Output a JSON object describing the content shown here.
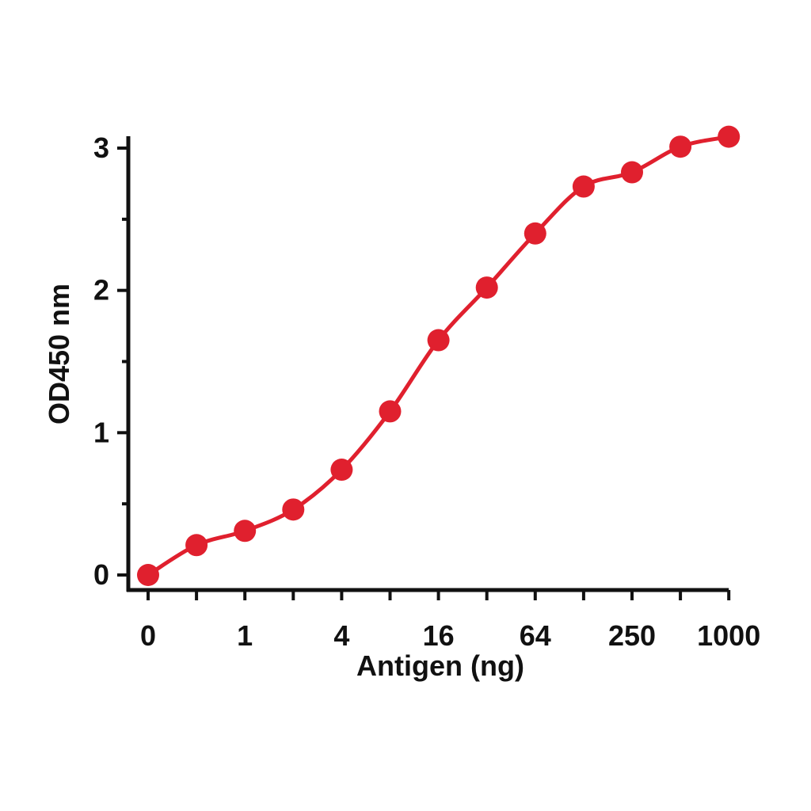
{
  "chart_data": {
    "type": "line",
    "xlabel": "Antigen (ng)",
    "ylabel": "OD450 nm",
    "x_tick_labels": [
      "0",
      "1",
      "4",
      "16",
      "64",
      "250",
      "1000"
    ],
    "y_tick_labels": [
      "0",
      "1",
      "2",
      "3"
    ],
    "ylim": [
      0,
      3.1
    ],
    "grid": false,
    "series": [
      {
        "color": "#e0202e",
        "points": [
          {
            "x": "0",
            "y": 0.0
          },
          {
            "x": "0.5",
            "y": 0.21
          },
          {
            "x": "1",
            "y": 0.31
          },
          {
            "x": "2",
            "y": 0.46
          },
          {
            "x": "4",
            "y": 0.74
          },
          {
            "x": "8",
            "y": 1.15
          },
          {
            "x": "16",
            "y": 1.65
          },
          {
            "x": "32",
            "y": 2.02
          },
          {
            "x": "64",
            "y": 2.4
          },
          {
            "x": "125",
            "y": 2.73
          },
          {
            "x": "250",
            "y": 2.83
          },
          {
            "x": "500",
            "y": 3.01
          },
          {
            "x": "1000",
            "y": 3.08
          }
        ]
      }
    ]
  }
}
